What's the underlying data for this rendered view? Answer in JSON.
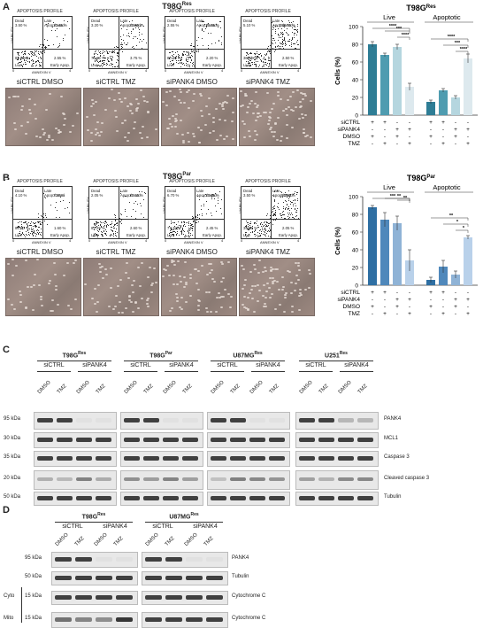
{
  "panels": {
    "A": {
      "letter": "A",
      "title_main": "T98G",
      "title_sup": "Res",
      "chart_title_main": "T98G",
      "chart_title_sup": "Res",
      "flow": [
        {
          "header": "APOPTOSIS PROFILE",
          "dead": "3.50 %",
          "late": "10.45 %",
          "live": "83.50 %",
          "early": "2.55 %",
          "condition": "siCTRL DMSO"
        },
        {
          "header": "APOPTOSIS PROFILE",
          "dead": "3.20 %",
          "late": "22.90 %",
          "live": "70.15 %",
          "early": "3.75 %",
          "condition": "siCTRL TMZ"
        },
        {
          "header": "APOPTOSIS PROFILE",
          "dead": "2.55 %",
          "late": "15.25 %",
          "live": "80.00 %",
          "early": "2.20 %",
          "condition": "siPANK4 DMSO"
        },
        {
          "header": "APOPTOSIS PROFILE",
          "dead": "5.10 %",
          "late": "55.70 %",
          "live": "36.70 %",
          "early": "2.50 %",
          "condition": "siPANK4 TMZ"
        }
      ]
    },
    "B": {
      "letter": "B",
      "title_main": "T98G",
      "title_sup": "Par",
      "chart_title_main": "T98G",
      "chart_title_sup": "Par",
      "flow": [
        {
          "header": "APOPTOSIS PROFILE",
          "dead": "4.10 %",
          "late": "7.40 %",
          "live": "86.90 %",
          "early": "1.60 %",
          "condition": "siCTRL DMSO"
        },
        {
          "header": "APOPTOSIS PROFILE",
          "dead": "2.05 %",
          "late": "12.10 %",
          "live": "83.25 %",
          "early": "2.60 %",
          "condition": "siCTRL TMZ"
        },
        {
          "header": "APOPTOSIS PROFILE",
          "dead": "6.70 %",
          "late": "13.65 %",
          "live": "77.20 %",
          "early": "2.45 %",
          "condition": "siPANK4 DMSO"
        },
        {
          "header": "APOPTOSIS PROFILE",
          "dead": "3.50 %",
          "late": "54.90 %",
          "live": "39.55 %",
          "early": "2.05 %",
          "condition": "siPANK4 TMZ"
        }
      ]
    },
    "C": {
      "letter": "C",
      "groups": [
        {
          "main": "T98G",
          "sup": "Res"
        },
        {
          "main": "T98G",
          "sup": "Par"
        },
        {
          "main": "U87MG",
          "sup": "Res"
        },
        {
          "main": "U251",
          "sup": "Res"
        }
      ],
      "kda": [
        "95 kDa",
        "30 kDa",
        "35 kDa",
        "20 kDa",
        "50 kDa"
      ],
      "proteins": [
        "PANK4",
        "MCL1",
        "Caspase 3",
        "Cleaved caspase 3",
        "Tubulin"
      ]
    },
    "D": {
      "letter": "D",
      "groups": [
        {
          "main": "T98G",
          "sup": "Res"
        },
        {
          "main": "U87MG",
          "sup": "Res"
        }
      ],
      "kda": [
        "95 kDa",
        "50 kDa",
        "15 kDa",
        "15 kDa"
      ],
      "fractions": [
        "Cyto",
        "Mito"
      ],
      "proteins": [
        "PANK4",
        "Tubulin",
        "Cytochrome C",
        "Cytochrome C"
      ]
    }
  },
  "common": {
    "quad_dead": "Dead",
    "quad_late": "Late Apop./Dead",
    "quad_live": "Live",
    "quad_early": "Early Apop.",
    "x_axis": "ANNEXIN V",
    "y_axis": "VIABILITY",
    "x_tick_0": "0",
    "x_tick_4": "4",
    "bottom_live": "Live",
    "bottom_apoptotic": "Apoptotic",
    "siCTRL": "siCTRL",
    "siPANK4": "siPANK4",
    "DMSO": "DMSO",
    "TMZ": "TMZ"
  },
  "chart_data": [
    {
      "type": "bar",
      "title": "T98GRes",
      "ylabel": "Cells (%)",
      "ylim": [
        0,
        100
      ],
      "yticks": [
        0,
        20,
        40,
        60,
        80,
        100
      ],
      "groups": [
        "Live",
        "Apoptotic"
      ],
      "conditions": [
        "siCTRL DMSO",
        "siCTRL TMZ",
        "siPANK4 DMSO",
        "siPANK4 TMZ"
      ],
      "series": [
        {
          "name": "Live",
          "values": [
            80,
            68,
            77,
            32
          ],
          "errors": [
            3,
            2,
            3,
            4
          ]
        },
        {
          "name": "Apoptotic",
          "values": [
            15,
            28,
            20,
            64
          ],
          "errors": [
            2,
            2,
            2,
            5
          ]
        }
      ],
      "colors": [
        "#2e7d95",
        "#4f9cb0",
        "#b5d6df",
        "#dde9ee"
      ],
      "significance": {
        "Live": [
          "****",
          "***",
          "****"
        ],
        "Apoptotic": [
          "****",
          "***",
          "****"
        ]
      },
      "matrix": {
        "siCTRL": [
          "+",
          "+",
          "-",
          "-",
          "+",
          "+",
          "-",
          "-"
        ],
        "siPANK4": [
          "-",
          "-",
          "+",
          "+",
          "-",
          "-",
          "+",
          "+"
        ],
        "DMSO": [
          "+",
          "-",
          "+",
          "-",
          "+",
          "-",
          "+",
          "-"
        ],
        "TMZ": [
          "-",
          "+",
          "-",
          "+",
          "-",
          "+",
          "-",
          "+"
        ]
      }
    },
    {
      "type": "bar",
      "title": "T98GPar",
      "ylabel": "Cells (%)",
      "ylim": [
        0,
        100
      ],
      "yticks": [
        0,
        20,
        40,
        60,
        80,
        100
      ],
      "groups": [
        "Live",
        "Apoptotic"
      ],
      "conditions": [
        "siCTRL DMSO",
        "siCTRL TMZ",
        "siPANK4 DMSO",
        "siPANK4 TMZ"
      ],
      "series": [
        {
          "name": "Live",
          "values": [
            88,
            74,
            70,
            28
          ],
          "errors": [
            2,
            8,
            8,
            12
          ]
        },
        {
          "name": "Apoptotic",
          "values": [
            6,
            21,
            12,
            54
          ],
          "errors": [
            3,
            7,
            4,
            2
          ]
        }
      ],
      "colors": [
        "#2e6fa3",
        "#4f88bb",
        "#8fb3d6",
        "#b9d1ea"
      ],
      "significance": {
        "Live": [
          "***",
          "**",
          "**"
        ],
        "Apoptotic": [
          "**",
          "*",
          "*"
        ]
      },
      "matrix": {
        "siCTRL": [
          "+",
          "+",
          "-",
          "-",
          "+",
          "+",
          "-",
          "-"
        ],
        "siPANK4": [
          "-",
          "-",
          "+",
          "+",
          "-",
          "-",
          "+",
          "+"
        ],
        "DMSO": [
          "+",
          "-",
          "+",
          "-",
          "+",
          "-",
          "+",
          "-"
        ],
        "TMZ": [
          "-",
          "+",
          "-",
          "+",
          "-",
          "+",
          "-",
          "+"
        ]
      }
    }
  ]
}
